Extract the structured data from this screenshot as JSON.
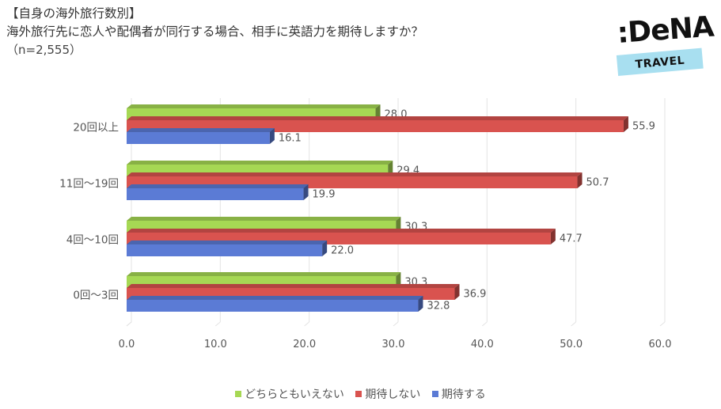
{
  "title": {
    "line1": "【自身の海外旅行数別】",
    "line2": "海外旅行先に恋人や配偶者が同行する場合、相手に英語力を期待しますか？",
    "line3": "（n=2,555）"
  },
  "logo": {
    "brand": ":DeNA",
    "tag": "TRAVEL"
  },
  "chart_data": {
    "type": "bar",
    "orientation": "horizontal",
    "categories": [
      "20回以上",
      "11回～19回",
      "4回～10回",
      "0回～3回"
    ],
    "series": [
      {
        "name": "どちらともいえない",
        "color": "#a6d854",
        "values": [
          28.0,
          29.4,
          30.3,
          30.3
        ]
      },
      {
        "name": "期待しない",
        "color": "#d9534f",
        "values": [
          55.9,
          50.7,
          47.7,
          36.9
        ]
      },
      {
        "name": "期待する",
        "color": "#5b7bd5",
        "values": [
          16.1,
          19.9,
          22.0,
          32.8
        ]
      }
    ],
    "xlim": [
      0,
      60
    ],
    "xticks": [
      "0.0",
      "10.0",
      "20.0",
      "30.0",
      "40.0",
      "50.0",
      "60.0"
    ],
    "value_labels": [
      [
        "28.0",
        "29.4",
        "30.3",
        "30.3"
      ],
      [
        "55.9",
        "50.7",
        "47.7",
        "36.9"
      ],
      [
        "16.1",
        "19.9",
        "22.0",
        "32.8"
      ]
    ],
    "grid": true,
    "legend_position": "bottom"
  }
}
